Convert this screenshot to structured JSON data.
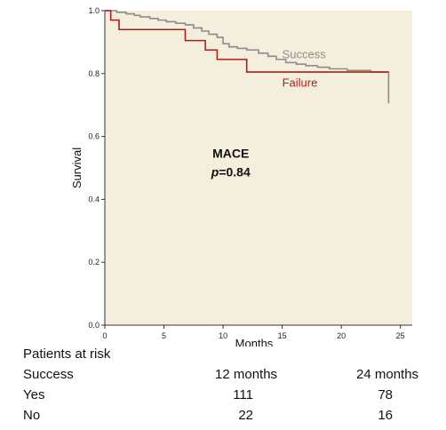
{
  "chart_data": {
    "type": "line",
    "subtype": "kaplan-meier",
    "title": "",
    "xlabel": "Months",
    "ylabel": "Survival",
    "xlim": [
      0,
      26
    ],
    "ylim": [
      0.0,
      1.0
    ],
    "xticks": [
      0,
      5,
      10,
      15,
      20,
      25
    ],
    "yticks": [
      "0.0",
      "0.2",
      "0.4",
      "0.6",
      "0.8",
      "1.0"
    ],
    "grid": false,
    "background_color": "#f3efdc",
    "annotation": {
      "title": "MACE",
      "p_label": "p",
      "p_value": "=0.84",
      "position": [
        9,
        0.53
      ]
    },
    "series": [
      {
        "name": "Success",
        "color": "#8c8c8c",
        "label_position": [
          15,
          0.86
        ],
        "x": [
          0,
          1.0,
          1.8,
          2.5,
          3.0,
          3.8,
          4.5,
          5.2,
          6.0,
          6.8,
          7.5,
          8.2,
          8.8,
          9.5,
          10.0,
          10.5,
          11.2,
          12.0,
          13.0,
          13.8,
          14.5,
          15.3,
          16.2,
          17.0,
          18.0,
          19.0,
          20.5,
          22.5,
          24.0,
          24.0
        ],
        "y": [
          1.0,
          0.995,
          0.99,
          0.985,
          0.98,
          0.975,
          0.97,
          0.965,
          0.96,
          0.955,
          0.945,
          0.935,
          0.925,
          0.915,
          0.895,
          0.885,
          0.88,
          0.875,
          0.865,
          0.855,
          0.845,
          0.835,
          0.83,
          0.825,
          0.82,
          0.815,
          0.81,
          0.805,
          0.795,
          0.705
        ]
      },
      {
        "name": "Failure",
        "color": "#b01c1c",
        "label_position": [
          15,
          0.77
        ],
        "x": [
          0,
          0.5,
          1.2,
          6.8,
          8.5,
          9.5,
          12.0,
          24.0
        ],
        "y": [
          1.0,
          0.97,
          0.94,
          0.905,
          0.875,
          0.845,
          0.805,
          0.805
        ]
      }
    ]
  },
  "risk_table": {
    "title": "Patients at risk",
    "header": [
      "Success",
      "12 months",
      "24 months"
    ],
    "rows": [
      [
        "Yes",
        "111",
        "78"
      ],
      [
        "No",
        "22",
        "16"
      ]
    ]
  }
}
